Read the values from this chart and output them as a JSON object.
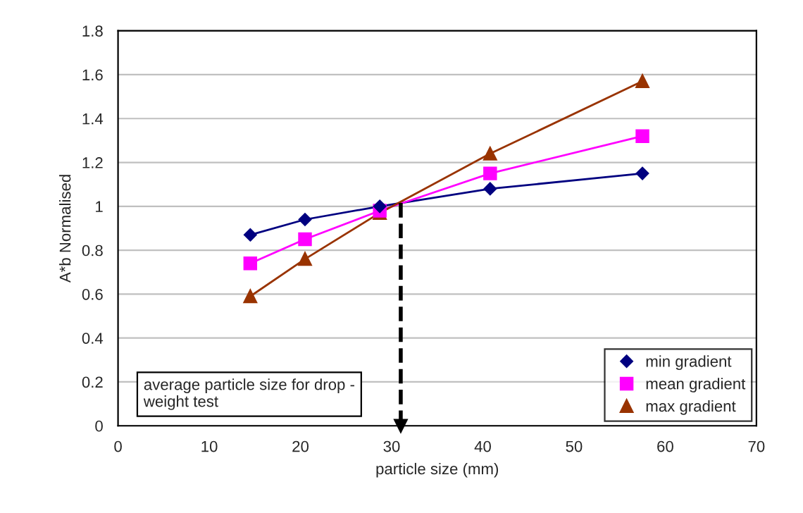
{
  "chart_data": {
    "type": "line",
    "xlabel": "particle size (mm)",
    "ylabel": "A*b Normalised",
    "x": [
      14.5,
      20.5,
      28.7,
      40.8,
      57.5
    ],
    "series": [
      {
        "name": "min gradient",
        "color": "#000080",
        "marker": "diamond",
        "values": [
          0.87,
          0.94,
          1.0,
          1.08,
          1.15
        ]
      },
      {
        "name": "mean gradient",
        "color": "#ff00ff",
        "marker": "square",
        "values": [
          0.74,
          0.85,
          0.98,
          1.15,
          1.32
        ]
      },
      {
        "name": "max gradient",
        "color": "#993300",
        "marker": "triangle",
        "values": [
          0.59,
          0.76,
          0.97,
          1.24,
          1.57
        ]
      }
    ],
    "xlim": [
      0,
      70
    ],
    "xticks": [
      0,
      10,
      20,
      30,
      40,
      50,
      60,
      70
    ],
    "ylim": [
      0,
      1.8
    ],
    "yticks": [
      0,
      0.2,
      0.4,
      0.6,
      0.8,
      1,
      1.2,
      1.4,
      1.6,
      1.8
    ],
    "grid": "y",
    "legend": "bottom right",
    "ref_lines": [
      {
        "axis": "x",
        "value": 31,
        "color": "#000000",
        "line_style": "dashed"
      }
    ],
    "annotations": [
      "average particle size for drop -\nweight test"
    ]
  }
}
